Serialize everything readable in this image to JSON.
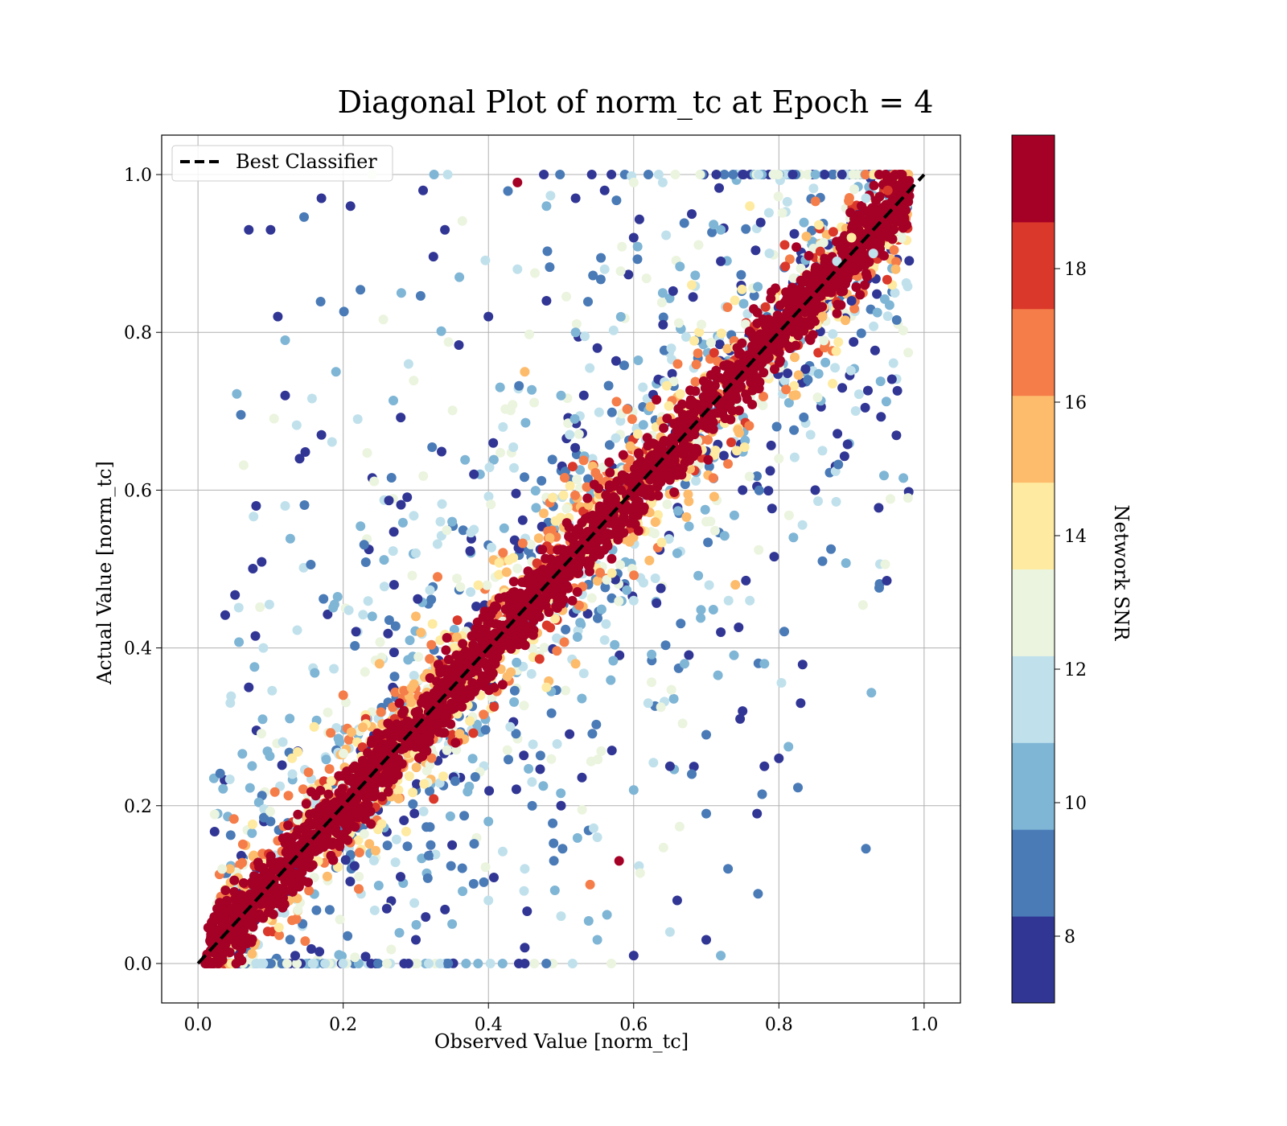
{
  "chart_data": {
    "type": "scatter",
    "title": "Diagonal Plot of norm_tc at Epoch = 4",
    "xlabel": "Observed Value [norm_tc]",
    "ylabel": "Actual Value [norm_tc]",
    "xlim": [
      -0.05,
      1.05
    ],
    "ylim": [
      -0.05,
      1.05
    ],
    "xticks": [
      0.0,
      0.2,
      0.4,
      0.6,
      0.8,
      1.0
    ],
    "yticks": [
      0.0,
      0.2,
      0.4,
      0.6,
      0.8,
      1.0
    ],
    "xtick_labels": [
      "0.0",
      "0.2",
      "0.4",
      "0.6",
      "0.8",
      "1.0"
    ],
    "ytick_labels": [
      "0.0",
      "0.2",
      "0.4",
      "0.6",
      "0.8",
      "1.0"
    ],
    "grid": true,
    "reference_line": {
      "name": "Best Classifier",
      "x": [
        0.0,
        1.0
      ],
      "y": [
        0.0,
        1.0
      ],
      "style": "dashed",
      "color": "#000000"
    },
    "legend": {
      "placement": "top-left",
      "entries": [
        "Best Classifier"
      ]
    },
    "colorbar": {
      "label": "Network SNR",
      "range": [
        7,
        20
      ],
      "ticks": [
        8,
        10,
        12,
        14,
        16,
        18
      ],
      "tick_labels": [
        "8",
        "10",
        "12",
        "14",
        "16",
        "18"
      ],
      "levels": [
        {
          "min": 7,
          "max": 8.3,
          "color": "#313695"
        },
        {
          "min": 8.3,
          "max": 9.6,
          "color": "#4a7bb7"
        },
        {
          "min": 9.6,
          "max": 10.9,
          "color": "#7fb5d5"
        },
        {
          "min": 10.9,
          "max": 12.2,
          "color": "#c0e1ec"
        },
        {
          "min": 12.2,
          "max": 13.5,
          "color": "#ebf4de"
        },
        {
          "min": 13.5,
          "max": 14.8,
          "color": "#feeaa0"
        },
        {
          "min": 14.8,
          "max": 16.1,
          "color": "#fdbb6c"
        },
        {
          "min": 16.1,
          "max": 17.4,
          "color": "#f57d4a"
        },
        {
          "min": 17.4,
          "max": 18.7,
          "color": "#da382a"
        },
        {
          "min": 18.7,
          "max": 20,
          "color": "#a50026"
        }
      ]
    },
    "series": [
      {
        "values_description_x": "observed",
        "values_description_y": "actual",
        "points": [
          [
            0.02,
            0.02,
            19
          ],
          [
            0.05,
            0.05,
            19
          ],
          [
            0.1,
            0.1,
            19
          ],
          [
            0.15,
            0.15,
            19
          ],
          [
            0.2,
            0.2,
            19
          ],
          [
            0.25,
            0.25,
            19
          ],
          [
            0.3,
            0.3,
            19
          ],
          [
            0.35,
            0.35,
            19
          ],
          [
            0.4,
            0.4,
            19
          ],
          [
            0.45,
            0.45,
            19
          ],
          [
            0.5,
            0.5,
            19
          ],
          [
            0.55,
            0.55,
            19
          ],
          [
            0.6,
            0.6,
            19
          ],
          [
            0.65,
            0.65,
            19
          ],
          [
            0.7,
            0.7,
            19
          ],
          [
            0.75,
            0.75,
            19
          ],
          [
            0.8,
            0.8,
            19
          ],
          [
            0.85,
            0.85,
            19
          ],
          [
            0.9,
            0.9,
            19
          ],
          [
            0.95,
            0.95,
            19
          ],
          [
            0.07,
            0.93,
            8
          ],
          [
            0.1,
            0.93,
            8
          ],
          [
            0.17,
            0.97,
            8
          ],
          [
            0.21,
            0.96,
            8
          ],
          [
            0.11,
            0.82,
            8
          ],
          [
            0.12,
            0.79,
            10
          ],
          [
            0.08,
            0.58,
            8
          ],
          [
            0.12,
            0.58,
            11
          ],
          [
            0.09,
            0.4,
            11
          ],
          [
            0.07,
            0.35,
            8
          ],
          [
            0.12,
            0.72,
            8
          ],
          [
            0.14,
            0.64,
            8
          ],
          [
            0.17,
            0.67,
            8
          ],
          [
            0.19,
            0.75,
            10
          ],
          [
            0.22,
            0.69,
            11
          ],
          [
            0.28,
            0.85,
            10
          ],
          [
            0.29,
            0.76,
            11
          ],
          [
            0.31,
            0.98,
            8
          ],
          [
            0.34,
            0.93,
            8
          ],
          [
            0.36,
            0.87,
            10
          ],
          [
            0.44,
            0.99,
            19
          ],
          [
            0.48,
            0.96,
            10
          ],
          [
            0.52,
            0.97,
            8
          ],
          [
            0.56,
            0.98,
            8
          ],
          [
            0.6,
            0.99,
            13
          ],
          [
            0.64,
            0.99,
            11
          ],
          [
            0.68,
            0.95,
            8
          ],
          [
            0.72,
            0.93,
            10
          ],
          [
            0.76,
            0.96,
            14
          ],
          [
            0.4,
            0.82,
            8
          ],
          [
            0.44,
            0.88,
            11
          ],
          [
            0.48,
            0.84,
            8
          ],
          [
            0.52,
            0.8,
            10
          ],
          [
            0.56,
            0.88,
            12
          ],
          [
            0.6,
            0.92,
            8
          ],
          [
            0.64,
            0.85,
            10
          ],
          [
            0.68,
            0.86,
            14
          ],
          [
            0.72,
            0.89,
            8
          ],
          [
            0.45,
            0.75,
            16
          ],
          [
            0.5,
            0.72,
            10
          ],
          [
            0.55,
            0.78,
            8
          ],
          [
            0.42,
            0.68,
            11
          ],
          [
            0.38,
            0.62,
            8
          ],
          [
            0.35,
            0.56,
            10
          ],
          [
            0.3,
            0.52,
            12
          ],
          [
            0.27,
            0.48,
            8
          ],
          [
            0.24,
            0.44,
            10
          ],
          [
            0.2,
            0.34,
            17
          ],
          [
            0.16,
            0.3,
            14
          ],
          [
            0.13,
            0.24,
            11
          ],
          [
            0.1,
            0.18,
            9
          ],
          [
            0.25,
            0.38,
            15
          ],
          [
            0.3,
            0.44,
            16
          ],
          [
            0.33,
            0.49,
            17
          ],
          [
            0.38,
            0.55,
            12
          ],
          [
            0.3,
            0.03,
            8
          ],
          [
            0.35,
            0.05,
            10
          ],
          [
            0.4,
            0.08,
            11
          ],
          [
            0.45,
            0.02,
            8
          ],
          [
            0.5,
            0.06,
            12
          ],
          [
            0.55,
            0.03,
            10
          ],
          [
            0.6,
            0.01,
            8
          ],
          [
            0.65,
            0.04,
            11
          ],
          [
            0.7,
            0.03,
            8
          ],
          [
            0.72,
            0.01,
            10
          ],
          [
            0.35,
            0.15,
            8
          ],
          [
            0.4,
            0.18,
            10
          ],
          [
            0.45,
            0.12,
            12
          ],
          [
            0.5,
            0.2,
            8
          ],
          [
            0.55,
            0.16,
            11
          ],
          [
            0.6,
            0.22,
            10
          ],
          [
            0.65,
            0.25,
            8
          ],
          [
            0.7,
            0.29,
            9
          ],
          [
            0.75,
            0.32,
            8
          ],
          [
            0.78,
            0.38,
            10
          ],
          [
            0.43,
            0.3,
            11
          ],
          [
            0.48,
            0.35,
            14
          ],
          [
            0.52,
            0.38,
            16
          ],
          [
            0.56,
            0.41,
            12
          ],
          [
            0.6,
            0.46,
            11
          ],
          [
            0.66,
            0.52,
            10
          ],
          [
            0.7,
            0.56,
            13
          ],
          [
            0.75,
            0.6,
            8
          ],
          [
            0.8,
            0.64,
            13
          ],
          [
            0.76,
            0.46,
            11
          ],
          [
            0.74,
            0.48,
            15
          ],
          [
            0.82,
            0.54,
            10
          ],
          [
            0.86,
            0.51,
            9
          ],
          [
            0.85,
            0.6,
            8
          ],
          [
            0.86,
            0.65,
            11
          ],
          [
            0.83,
            0.33,
            8
          ],
          [
            0.8,
            0.26,
            8
          ],
          [
            0.77,
            0.19,
            8
          ],
          [
            0.73,
            0.12,
            9
          ],
          [
            0.78,
            0.25,
            8
          ],
          [
            0.68,
            0.24,
            9
          ],
          [
            0.7,
            0.19,
            9
          ],
          [
            0.66,
            0.08,
            8
          ],
          [
            0.58,
            0.13,
            19
          ],
          [
            0.54,
            0.1,
            17
          ],
          [
            0.62,
            0.33,
            12
          ],
          [
            0.67,
            0.38,
            10
          ],
          [
            0.72,
            0.42,
            8
          ],
          [
            0.57,
            0.27,
            8
          ],
          [
            0.46,
            0.23,
            11
          ],
          [
            0.92,
            0.97,
            12
          ],
          [
            0.9,
            0.92,
            14
          ],
          [
            0.88,
            0.89,
            11
          ],
          [
            0.86,
            0.82,
            16
          ],
          [
            0.93,
            0.9,
            12
          ],
          [
            0.95,
            0.98,
            18
          ],
          [
            0.97,
            0.99,
            19
          ],
          [
            0.84,
            0.74,
            9
          ],
          [
            0.82,
            0.72,
            15
          ],
          [
            0.9,
            0.84,
            8
          ]
        ]
      }
    ]
  }
}
